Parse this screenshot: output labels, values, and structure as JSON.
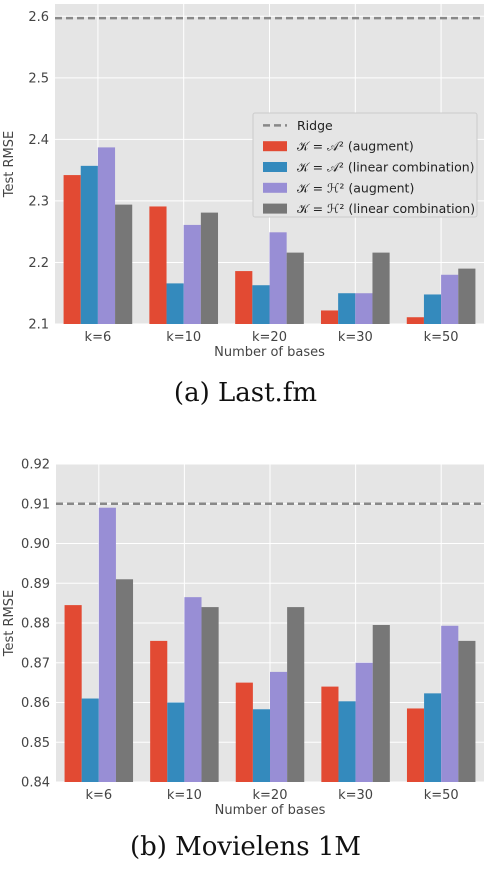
{
  "chart_data": [
    {
      "type": "bar",
      "title": "",
      "xlabel": "Number of bases",
      "ylabel": "Test RMSE",
      "categories": [
        "k=6",
        "k=10",
        "k=20",
        "k=30",
        "k=50"
      ],
      "ylim": [
        2.1,
        2.62
      ],
      "yticks": [
        "2.1",
        "2.2",
        "2.3",
        "2.4",
        "2.5",
        "2.6"
      ],
      "reference": {
        "name": "Ridge",
        "value": 2.597,
        "color": "#888888",
        "style": "dashed"
      },
      "series": [
        {
          "name": "𝒦 = 𝒜² (augment)",
          "color": "#E24A33",
          "values": [
            2.342,
            2.291,
            2.186,
            2.122,
            2.111
          ]
        },
        {
          "name": "𝒦 = 𝒜² (linear combination)",
          "color": "#348ABD",
          "values": [
            2.357,
            2.166,
            2.163,
            2.15,
            2.148
          ]
        },
        {
          "name": "𝒦 = ℋ² (augment)",
          "color": "#988ED5",
          "values": [
            2.387,
            2.261,
            2.249,
            2.15,
            2.18
          ]
        },
        {
          "name": "𝒦 = ℋ² (linear combination)",
          "color": "#777777",
          "values": [
            2.294,
            2.281,
            2.216,
            2.216,
            2.19
          ]
        }
      ],
      "grid": true,
      "legend": "center-right",
      "caption": "(a)  Last.fm"
    },
    {
      "type": "bar",
      "title": "",
      "xlabel": "Number of bases",
      "ylabel": "Test RMSE",
      "categories": [
        "k=6",
        "k=10",
        "k=20",
        "k=30",
        "k=50"
      ],
      "ylim": [
        0.84,
        0.92
      ],
      "yticks": [
        "0.84",
        "0.85",
        "0.86",
        "0.87",
        "0.88",
        "0.89",
        "0.90",
        "0.91",
        "0.92"
      ],
      "reference": {
        "name": "Ridge",
        "value": 0.91,
        "color": "#888888",
        "style": "dashed"
      },
      "series": [
        {
          "name": "𝒦 = 𝒜² (augment)",
          "color": "#E24A33",
          "values": [
            0.8845,
            0.8755,
            0.865,
            0.864,
            0.8585
          ]
        },
        {
          "name": "𝒦 = 𝒜² (linear combination)",
          "color": "#348ABD",
          "values": [
            0.861,
            0.86,
            0.8583,
            0.8603,
            0.8623
          ]
        },
        {
          "name": "𝒦 = ℋ² (augment)",
          "color": "#988ED5",
          "values": [
            0.909,
            0.8865,
            0.8677,
            0.87,
            0.8793
          ]
        },
        {
          "name": "𝒦 = ℋ² (linear combination)",
          "color": "#777777",
          "values": [
            0.891,
            0.884,
            0.884,
            0.8795,
            0.8755
          ]
        }
      ],
      "grid": true,
      "caption": "(b)  Movielens 1M"
    }
  ]
}
